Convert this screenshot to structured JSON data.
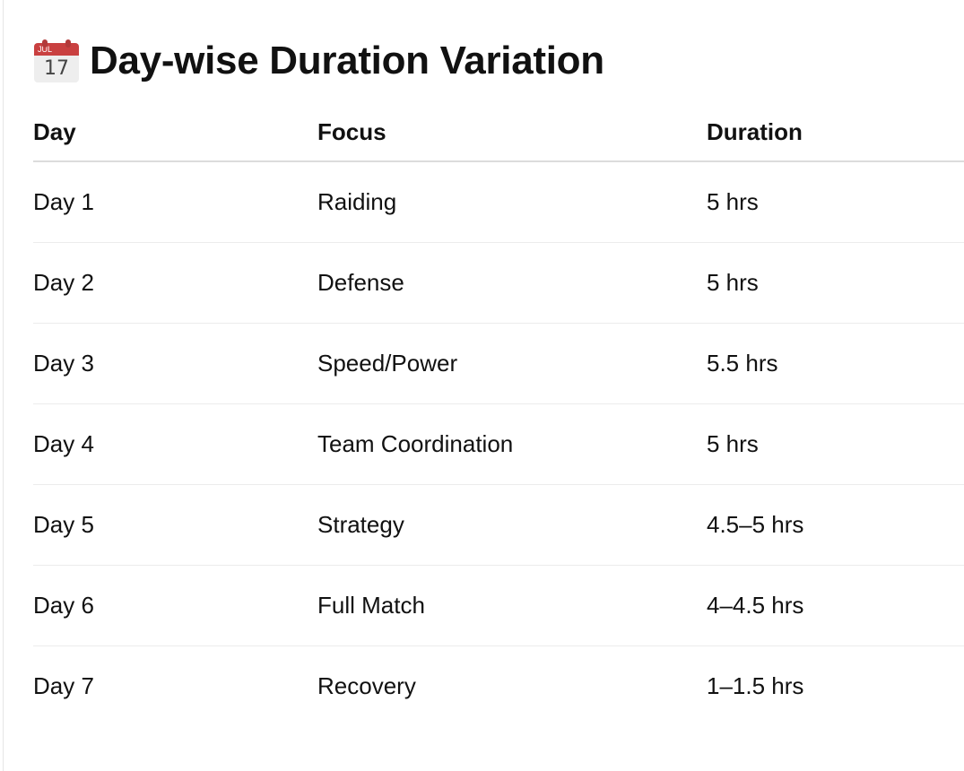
{
  "heading": {
    "icon": "calendar-icon",
    "icon_month": "JUL",
    "icon_day": "17",
    "title": "Day-wise Duration Variation"
  },
  "table": {
    "headers": [
      "Day",
      "Focus",
      "Duration"
    ],
    "rows": [
      [
        "Day 1",
        "Raiding",
        "5 hrs"
      ],
      [
        "Day 2",
        "Defense",
        "5 hrs"
      ],
      [
        "Day 3",
        "Speed/Power",
        "5.5 hrs"
      ],
      [
        "Day 4",
        "Team Coordination",
        "5 hrs"
      ],
      [
        "Day 5",
        "Strategy",
        "4.5–5 hrs"
      ],
      [
        "Day 6",
        "Full Match",
        "4–4.5 hrs"
      ],
      [
        "Day 7",
        "Recovery",
        "1–1.5 hrs"
      ]
    ]
  },
  "colors": {
    "text": "#111111",
    "header_rule": "#dcdcdc",
    "row_rule": "#ececec",
    "calendar_red": "#c94040"
  }
}
